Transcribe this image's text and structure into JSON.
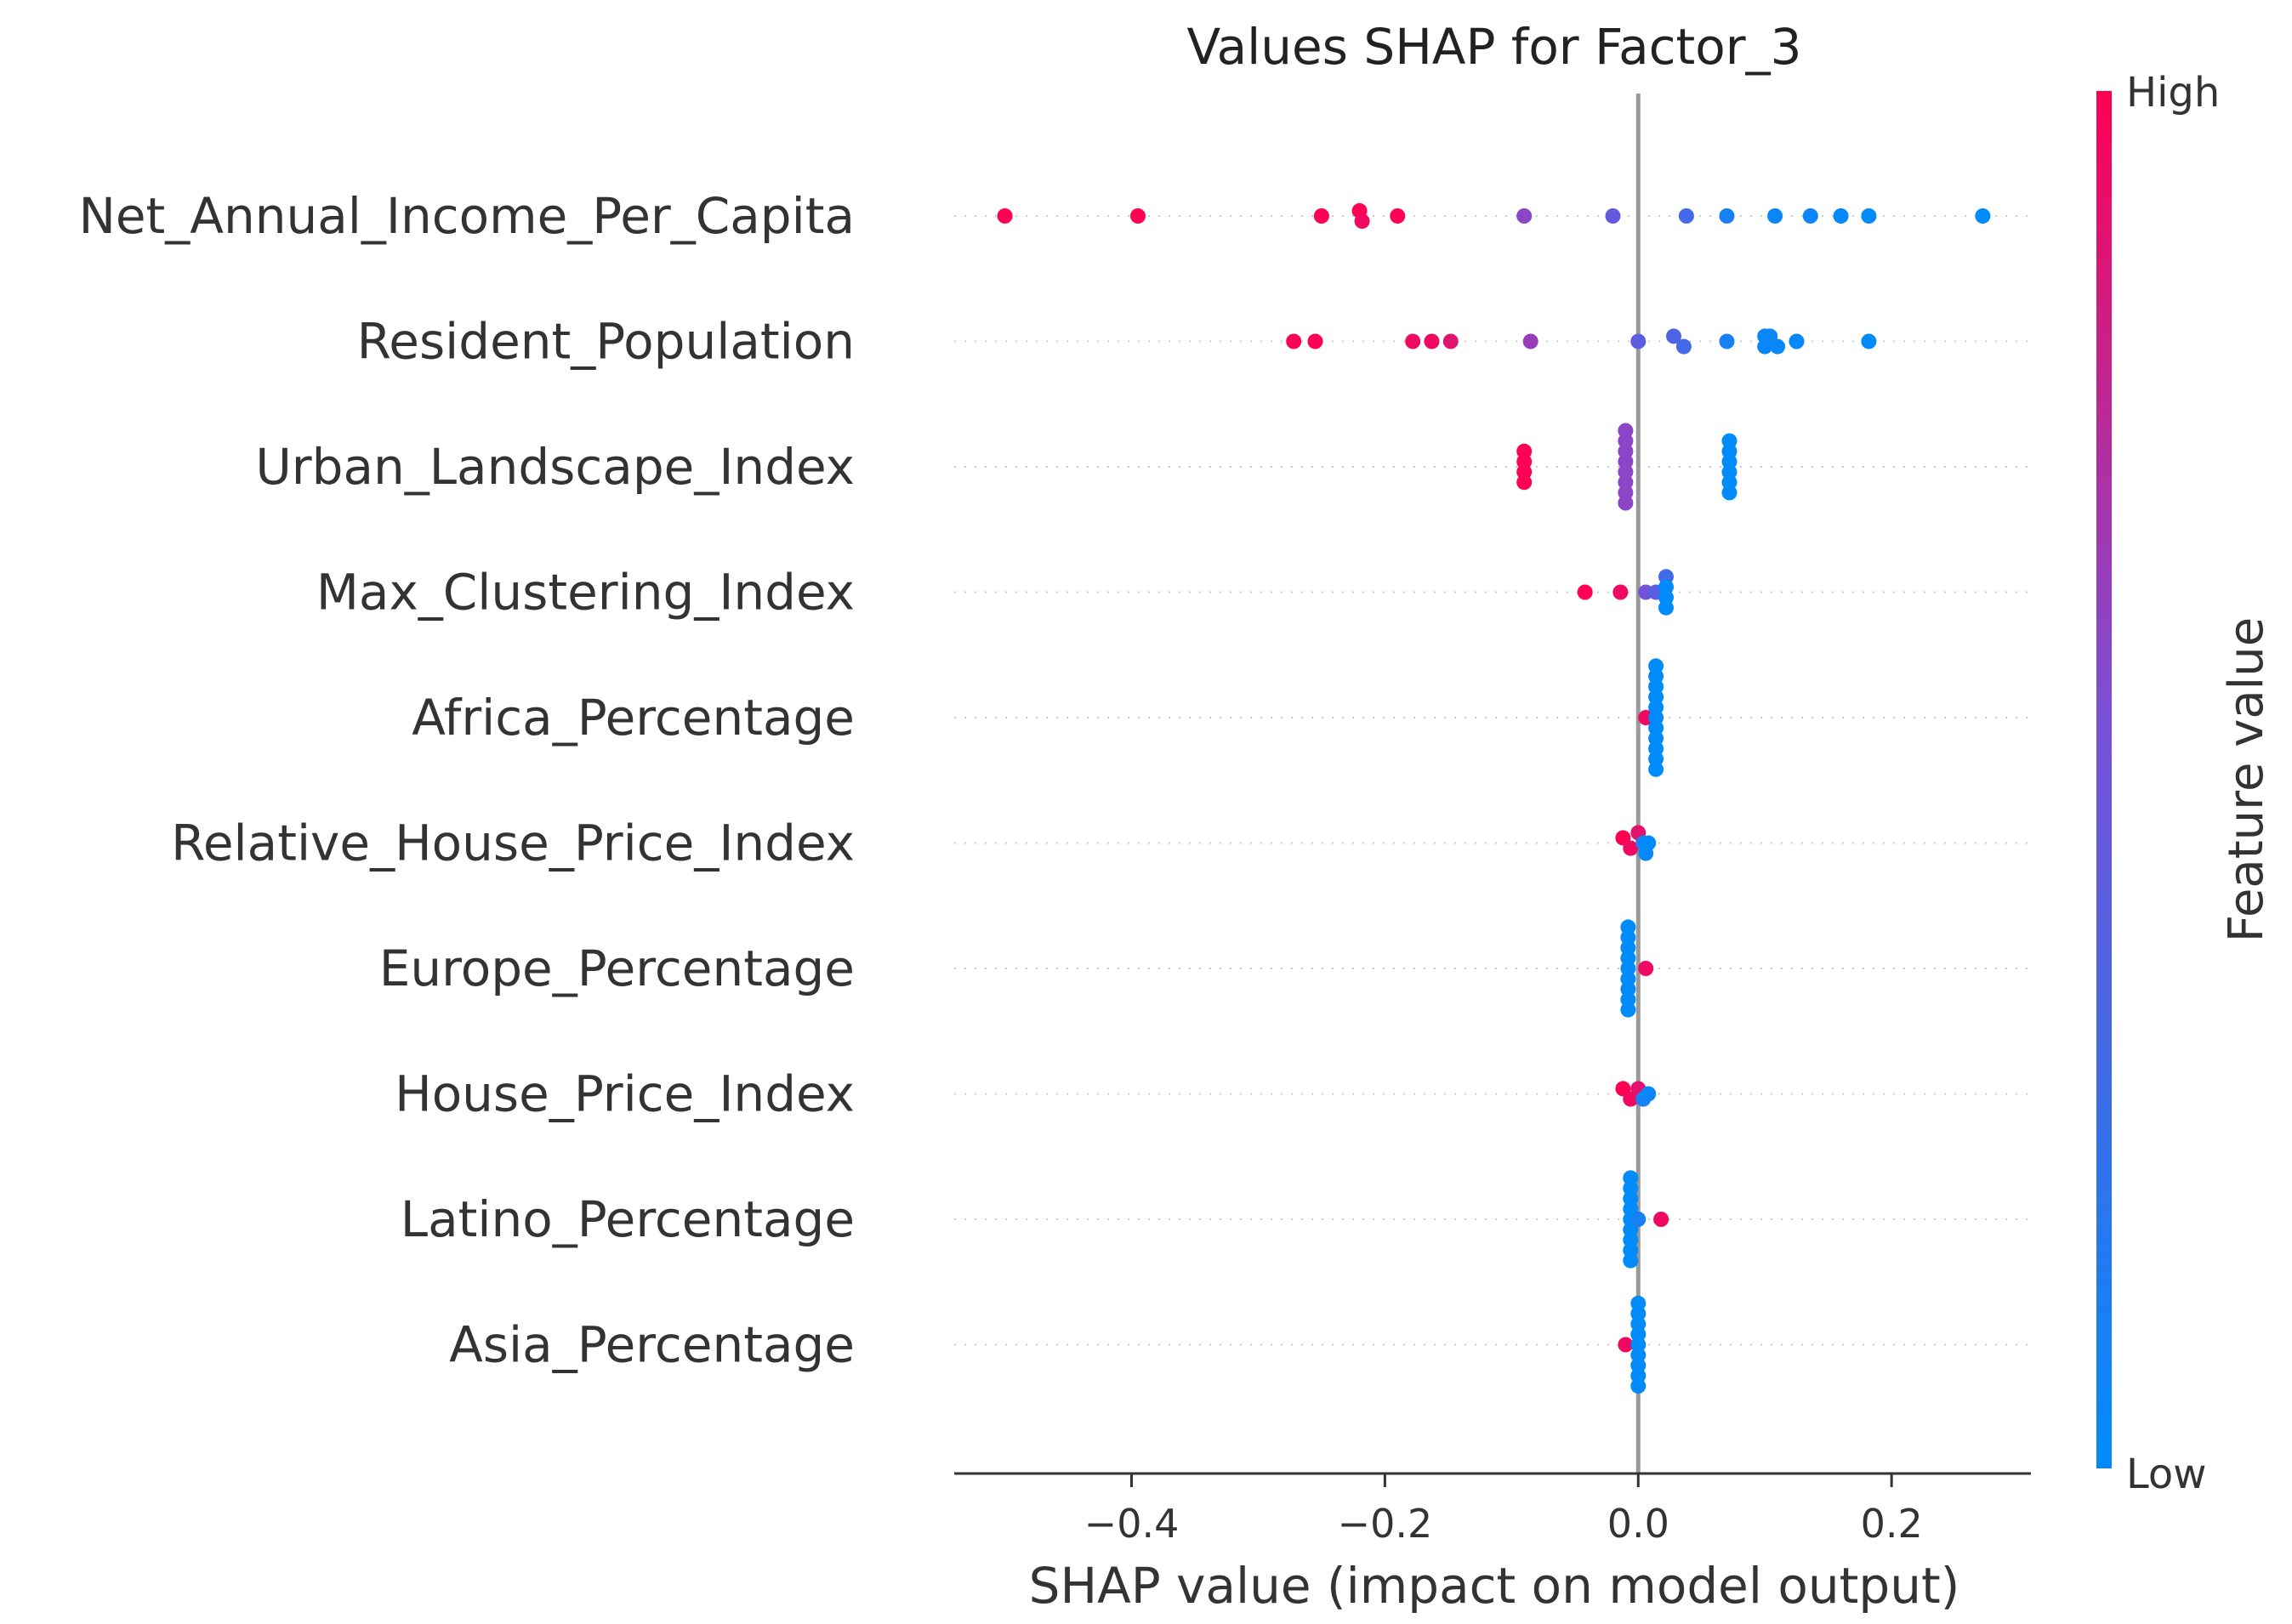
{
  "chart_data": {
    "type": "scatter",
    "subtype": "shap-beeswarm",
    "title": "Values SHAP for Factor_3",
    "xlabel": "SHAP value (impact on model output)",
    "ylabel": "",
    "xlim": [
      -0.54,
      0.31
    ],
    "xticks": [
      -0.4,
      -0.2,
      0.0,
      0.2
    ],
    "xtick_labels": [
      "−0.4",
      "−0.2",
      "0.0",
      "0.2"
    ],
    "colorbar": {
      "title": "Feature value",
      "high_label": "High",
      "low_label": "Low",
      "high_color": "#ff0052",
      "low_color": "#008bfb"
    },
    "features": [
      {
        "name": "Net_Annual_Income_Per_Capita",
        "points": [
          [
            -0.5,
            1.0
          ],
          [
            -0.395,
            1.0
          ],
          [
            -0.25,
            1.0
          ],
          [
            -0.22,
            1.0
          ],
          [
            -0.218,
            0.95
          ],
          [
            -0.19,
            1.0
          ],
          [
            -0.09,
            0.6
          ],
          [
            -0.02,
            0.45
          ],
          [
            0.038,
            0.3
          ],
          [
            0.07,
            0.1
          ],
          [
            0.108,
            0.05
          ],
          [
            0.136,
            0.05
          ],
          [
            0.16,
            0.02
          ],
          [
            0.182,
            0.0
          ],
          [
            0.272,
            0.0
          ]
        ]
      },
      {
        "name": "Resident_Population",
        "points": [
          [
            -0.272,
            1.0
          ],
          [
            -0.255,
            1.0
          ],
          [
            -0.178,
            0.95
          ],
          [
            -0.163,
            0.95
          ],
          [
            -0.148,
            0.9
          ],
          [
            -0.085,
            0.65
          ],
          [
            0.0,
            0.4
          ],
          [
            0.028,
            0.35
          ],
          [
            0.036,
            0.3
          ],
          [
            0.07,
            0.1
          ],
          [
            0.1,
            0.05
          ],
          [
            0.1,
            0.05
          ],
          [
            0.104,
            0.05
          ],
          [
            0.11,
            0.05
          ],
          [
            0.125,
            0.02
          ],
          [
            0.182,
            0.0
          ]
        ]
      },
      {
        "name": "Urban_Landscape_Index",
        "points": [
          [
            -0.09,
            1.0
          ],
          [
            -0.09,
            1.0
          ],
          [
            -0.09,
            1.0
          ],
          [
            -0.09,
            1.0
          ],
          [
            -0.01,
            0.6
          ],
          [
            -0.01,
            0.6
          ],
          [
            -0.01,
            0.6
          ],
          [
            -0.01,
            0.6
          ],
          [
            -0.01,
            0.6
          ],
          [
            -0.01,
            0.6
          ],
          [
            -0.01,
            0.6
          ],
          [
            -0.01,
            0.6
          ],
          [
            0.072,
            0.0
          ],
          [
            0.072,
            0.0
          ],
          [
            0.072,
            0.0
          ],
          [
            0.072,
            0.0
          ],
          [
            0.072,
            0.0
          ],
          [
            0.072,
            0.0
          ]
        ]
      },
      {
        "name": "Max_Clustering_Index",
        "points": [
          [
            -0.042,
            1.0
          ],
          [
            -0.014,
            0.95
          ],
          [
            0.006,
            0.5
          ],
          [
            0.014,
            0.4
          ],
          [
            0.022,
            0.3
          ],
          [
            0.022,
            0.0
          ],
          [
            0.022,
            0.0
          ],
          [
            0.022,
            0.0
          ]
        ]
      },
      {
        "name": "Africa_Percentage",
        "points": [
          [
            0.006,
            0.95
          ],
          [
            0.014,
            0.0
          ],
          [
            0.014,
            0.0
          ],
          [
            0.014,
            0.0
          ],
          [
            0.014,
            0.0
          ],
          [
            0.014,
            0.0
          ],
          [
            0.014,
            0.0
          ],
          [
            0.014,
            0.0
          ],
          [
            0.014,
            0.0
          ],
          [
            0.014,
            0.0
          ],
          [
            0.014,
            0.0
          ],
          [
            0.014,
            0.0
          ]
        ]
      },
      {
        "name": "Relative_House_Price_Index",
        "points": [
          [
            -0.012,
            1.0
          ],
          [
            -0.006,
            0.95
          ],
          [
            0.0,
            0.9
          ],
          [
            0.004,
            0.1
          ],
          [
            0.006,
            0.05
          ],
          [
            0.008,
            0.0
          ]
        ]
      },
      {
        "name": "Europe_Percentage",
        "points": [
          [
            0.006,
            0.95
          ],
          [
            -0.008,
            0.0
          ],
          [
            -0.008,
            0.0
          ],
          [
            -0.008,
            0.0
          ],
          [
            -0.008,
            0.0
          ],
          [
            -0.008,
            0.0
          ],
          [
            -0.008,
            0.0
          ],
          [
            -0.008,
            0.0
          ],
          [
            -0.008,
            0.0
          ],
          [
            -0.008,
            0.0
          ]
        ]
      },
      {
        "name": "House_Price_Index",
        "points": [
          [
            -0.012,
            1.0
          ],
          [
            -0.006,
            0.95
          ],
          [
            0.0,
            0.9
          ],
          [
            0.004,
            0.1
          ],
          [
            0.008,
            0.05
          ]
        ]
      },
      {
        "name": "Latino_Percentage",
        "points": [
          [
            0.018,
            0.95
          ],
          [
            -0.006,
            0.0
          ],
          [
            -0.006,
            0.0
          ],
          [
            -0.006,
            0.0
          ],
          [
            -0.006,
            0.0
          ],
          [
            -0.006,
            0.0
          ],
          [
            -0.006,
            0.0
          ],
          [
            -0.006,
            0.0
          ],
          [
            -0.006,
            0.0
          ],
          [
            -0.006,
            0.0
          ],
          [
            0.0,
            0.1
          ]
        ]
      },
      {
        "name": "Asia_Percentage",
        "points": [
          [
            -0.01,
            0.95
          ],
          [
            0.0,
            0.0
          ],
          [
            0.0,
            0.0
          ],
          [
            0.0,
            0.0
          ],
          [
            0.0,
            0.0
          ],
          [
            0.0,
            0.0
          ],
          [
            0.0,
            0.0
          ],
          [
            0.0,
            0.0
          ],
          [
            0.0,
            0.0
          ],
          [
            0.0,
            0.0
          ]
        ]
      }
    ]
  }
}
